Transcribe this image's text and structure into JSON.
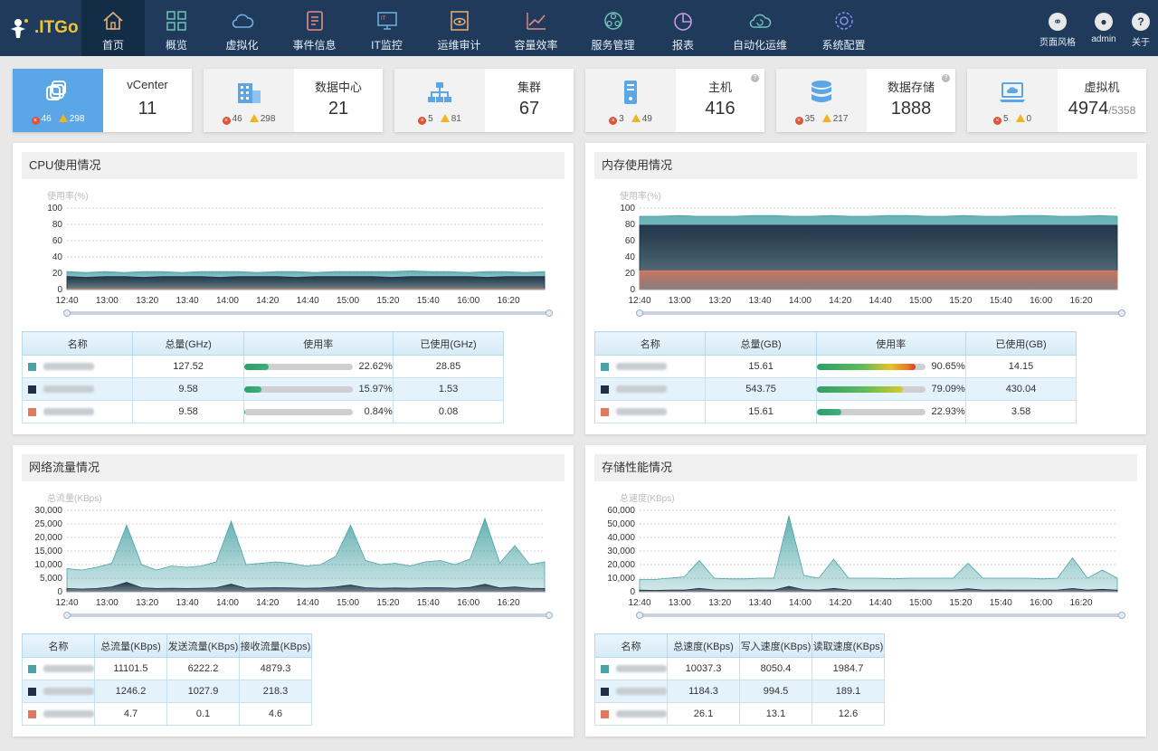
{
  "brand": {
    "logo_text": ".ITGo"
  },
  "nav": [
    {
      "label": "首页",
      "icon": "home-icon"
    },
    {
      "label": "概览",
      "icon": "grid-icon"
    },
    {
      "label": "虚拟化",
      "icon": "cloud-icon"
    },
    {
      "label": "事件信息",
      "icon": "document-icon"
    },
    {
      "label": "IT监控",
      "icon": "monitor-icon"
    },
    {
      "label": "运维审计",
      "icon": "eye-icon"
    },
    {
      "label": "容量效率",
      "icon": "trend-icon"
    },
    {
      "label": "服务管理",
      "icon": "service-icon"
    },
    {
      "label": "报表",
      "icon": "pie-icon"
    },
    {
      "label": "自动化运维",
      "icon": "cloud-refresh-icon"
    },
    {
      "label": "系统配置",
      "icon": "gear-icon"
    }
  ],
  "tools": [
    {
      "label": "页面风格",
      "icon": "link-icon"
    },
    {
      "label": "admin",
      "icon": "user-icon"
    },
    {
      "label": "关于",
      "icon": "help-icon"
    }
  ],
  "stats": [
    {
      "title": "vCenter",
      "value": "11",
      "errors": "46",
      "warnings": "298",
      "icon": "vcenter-icon"
    },
    {
      "title": "数据中心",
      "value": "21",
      "errors": "46",
      "warnings": "298",
      "icon": "building-icon"
    },
    {
      "title": "集群",
      "value": "67",
      "errors": "5",
      "warnings": "81",
      "icon": "cluster-icon"
    },
    {
      "title": "主机",
      "value": "416",
      "errors": "3",
      "warnings": "49",
      "icon": "server-icon"
    },
    {
      "title": "数据存储",
      "value": "1888",
      "errors": "35",
      "warnings": "217",
      "icon": "database-icon"
    },
    {
      "title": "虚拟机",
      "value": "4974",
      "total": "/5358",
      "errors": "5",
      "warnings": "0",
      "icon": "laptop-cloud-icon"
    }
  ],
  "series_colors": [
    "#4aa3a6",
    "#1f3044",
    "#e07a5f"
  ],
  "cpu": {
    "title": "CPU使用情况",
    "chart_data": {
      "type": "area",
      "ylabel": "使用率(%)",
      "ylim": [
        0,
        100
      ],
      "yticks": [
        "0",
        "20",
        "40",
        "60",
        "80",
        "100"
      ],
      "xticks": [
        "12:40",
        "13:00",
        "13:20",
        "13:40",
        "14:00",
        "14:20",
        "14:40",
        "15:00",
        "15:20",
        "15:40",
        "16:00",
        "16:20"
      ],
      "series": [
        {
          "values": [
            22,
            21,
            22,
            21,
            22,
            22,
            21,
            22,
            22,
            22,
            21,
            22,
            22,
            21,
            22,
            22,
            22,
            22,
            23,
            22,
            22,
            21,
            22,
            22,
            21,
            22
          ]
        },
        {
          "values": [
            16,
            15,
            16,
            16,
            15,
            16,
            16,
            16,
            15,
            16,
            16,
            16,
            15,
            16,
            16,
            16,
            16,
            15,
            16,
            16,
            16,
            16,
            15,
            16,
            16,
            16
          ]
        },
        {
          "values": [
            1,
            1,
            1,
            1,
            1,
            1,
            1,
            1,
            1,
            1,
            1,
            1,
            1,
            1,
            1,
            1,
            1,
            1,
            1,
            1,
            1,
            1,
            1,
            1,
            1,
            1
          ]
        }
      ]
    },
    "headers": [
      "名称",
      "总量(GHz)",
      "使用率",
      "已使用(GHz)"
    ],
    "rows": [
      {
        "total": "127.52",
        "rate": 22.62,
        "rate_text": "22.62%",
        "used": "28.85"
      },
      {
        "total": "9.58",
        "rate": 15.97,
        "rate_text": "15.97%",
        "used": "1.53"
      },
      {
        "total": "9.58",
        "rate": 0.84,
        "rate_text": "0.84%",
        "used": "0.08"
      }
    ]
  },
  "mem": {
    "title": "内存使用情况",
    "chart_data": {
      "type": "area",
      "ylabel": "使用率(%)",
      "ylim": [
        0,
        100
      ],
      "yticks": [
        "0",
        "20",
        "40",
        "60",
        "80",
        "100"
      ],
      "xticks": [
        "12:40",
        "13:00",
        "13:20",
        "13:40",
        "14:00",
        "14:20",
        "14:40",
        "15:00",
        "15:20",
        "15:40",
        "16:00",
        "16:20"
      ],
      "series": [
        {
          "values": [
            90,
            90,
            91,
            90,
            90,
            90,
            91,
            91,
            90,
            90,
            91,
            90,
            90,
            91,
            91,
            90,
            90,
            91,
            90,
            90,
            91,
            91,
            90,
            90,
            91,
            90
          ]
        },
        {
          "values": [
            79,
            79,
            79,
            79,
            79,
            79,
            79,
            79,
            79,
            79,
            79,
            79,
            79,
            79,
            79,
            79,
            79,
            79,
            79,
            79,
            79,
            79,
            79,
            79,
            79,
            79
          ]
        },
        {
          "values": [
            23,
            23,
            23,
            23,
            23,
            23,
            23,
            23,
            23,
            23,
            23,
            23,
            23,
            23,
            23,
            23,
            23,
            23,
            23,
            23,
            23,
            23,
            23,
            23,
            23,
            23
          ]
        }
      ]
    },
    "headers": [
      "名称",
      "总量(GB)",
      "使用率",
      "已使用(GB)"
    ],
    "rows": [
      {
        "total": "15.61",
        "rate": 90.65,
        "rate_text": "90.65%",
        "used": "14.15"
      },
      {
        "total": "543.75",
        "rate": 79.09,
        "rate_text": "79.09%",
        "used": "430.04"
      },
      {
        "total": "15.61",
        "rate": 22.93,
        "rate_text": "22.93%",
        "used": "3.58"
      }
    ]
  },
  "net": {
    "title": "网络流量情况",
    "chart_data": {
      "type": "area",
      "ylabel": "总流量(KBps)",
      "ylim": [
        0,
        30000
      ],
      "yticks": [
        "0",
        "5,000",
        "10,000",
        "15,000",
        "20,000",
        "25,000",
        "30,000"
      ],
      "xticks": [
        "12:40",
        "13:00",
        "13:20",
        "13:40",
        "14:00",
        "14:20",
        "14:40",
        "15:00",
        "15:20",
        "15:40",
        "16:00",
        "16:20"
      ],
      "series": [
        {
          "values": [
            8500,
            8000,
            9000,
            10500,
            24500,
            10000,
            8000,
            9500,
            9000,
            9500,
            11000,
            26000,
            10000,
            10500,
            11000,
            10500,
            9500,
            10000,
            13000,
            24500,
            11500,
            10000,
            10500,
            9500,
            11000,
            11500,
            10000,
            12000,
            27000,
            10500,
            17000,
            10000,
            11000
          ]
        },
        {
          "values": [
            1200,
            1000,
            1200,
            1800,
            3500,
            1500,
            1200,
            1300,
            1200,
            1300,
            1500,
            2800,
            1300,
            1400,
            1500,
            1400,
            1300,
            1400,
            1800,
            2500,
            1500,
            1300,
            1400,
            1300,
            1500,
            1500,
            1300,
            1600,
            2800,
            1400,
            1800,
            1300,
            1200
          ]
        },
        {
          "values": [
            5,
            5,
            5,
            5,
            5,
            5,
            5,
            5,
            5,
            5,
            5,
            5,
            5,
            5,
            5,
            5,
            5,
            5,
            5,
            5,
            5,
            5,
            5,
            5,
            5,
            5,
            5,
            5,
            5,
            5,
            5,
            5,
            5
          ]
        }
      ]
    },
    "headers": [
      "名称",
      "总流量(KBps)",
      "发送流量(KBps)",
      "接收流量(KBps)"
    ],
    "rows": [
      {
        "total": "11101.5",
        "send": "6222.2",
        "recv": "4879.3"
      },
      {
        "total": "1246.2",
        "send": "1027.9",
        "recv": "218.3"
      },
      {
        "total": "4.7",
        "send": "0.1",
        "recv": "4.6"
      }
    ]
  },
  "disk": {
    "title": "存储性能情况",
    "chart_data": {
      "type": "area",
      "ylabel": "总速度(KBps)",
      "ylim": [
        0,
        60000
      ],
      "yticks": [
        "0",
        "10,000",
        "20,000",
        "30,000",
        "40,000",
        "50,000",
        "60,000"
      ],
      "xticks": [
        "12:40",
        "13:00",
        "13:20",
        "13:40",
        "14:00",
        "14:20",
        "14:40",
        "15:00",
        "15:20",
        "15:40",
        "16:00",
        "16:20"
      ],
      "series": [
        {
          "values": [
            9000,
            9000,
            10000,
            11000,
            23000,
            10000,
            9500,
            9500,
            10000,
            10000,
            56000,
            12000,
            10000,
            24000,
            10000,
            10000,
            10000,
            9500,
            10000,
            10000,
            10000,
            10000,
            21000,
            10000,
            10000,
            10000,
            10000,
            9500,
            10000,
            25000,
            10000,
            16000,
            10000
          ]
        },
        {
          "values": [
            1200,
            1000,
            1200,
            1200,
            2500,
            1300,
            1200,
            1200,
            1300,
            1200,
            4000,
            1500,
            1200,
            2500,
            1300,
            1200,
            1200,
            1200,
            1300,
            1200,
            1200,
            1200,
            2200,
            1200,
            1300,
            1200,
            1200,
            1200,
            1300,
            2400,
            1200,
            1800,
            1200
          ]
        },
        {
          "values": [
            30,
            30,
            30,
            30,
            30,
            30,
            30,
            30,
            30,
            30,
            30,
            30,
            30,
            30,
            30,
            30,
            30,
            30,
            30,
            30,
            30,
            30,
            30,
            30,
            30,
            30,
            30,
            30,
            30,
            30,
            30,
            30,
            30
          ]
        }
      ]
    },
    "headers": [
      "名称",
      "总速度(KBps)",
      "写入速度(KBps)",
      "读取速度(KBps)"
    ],
    "rows": [
      {
        "total": "10037.3",
        "send": "8050.4",
        "recv": "1984.7"
      },
      {
        "total": "1184.3",
        "send": "994.5",
        "recv": "189.1"
      },
      {
        "total": "26.1",
        "send": "13.1",
        "recv": "12.6"
      }
    ]
  }
}
